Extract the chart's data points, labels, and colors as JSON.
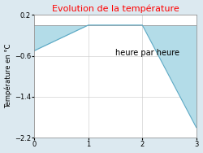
{
  "title": "Evolution de la température",
  "title_color": "#ff0000",
  "xlabel_text": "heure par heure",
  "ylabel": "Température en °C",
  "x": [
    0,
    1,
    2,
    3
  ],
  "y": [
    -0.5,
    0.0,
    0.0,
    -2.0
  ],
  "fill_color": "#b3dce8",
  "fill_alpha": 1.0,
  "line_color": "#5ba8c4",
  "line_width": 0.8,
  "xlim": [
    0,
    3
  ],
  "ylim": [
    -2.2,
    0.2
  ],
  "yticks": [
    0.2,
    -0.6,
    -1.4,
    -2.2
  ],
  "xticks": [
    0,
    1,
    2,
    3
  ],
  "fig_bg_color": "#dce9f0",
  "axes_bg_color": "#ffffff",
  "grid_color": "#c8c8c8",
  "title_fontsize": 8,
  "ylabel_fontsize": 6,
  "tick_fontsize": 6,
  "xlabel_inside_x": 2.1,
  "xlabel_inside_y": -0.55,
  "xlabel_fontsize": 7
}
